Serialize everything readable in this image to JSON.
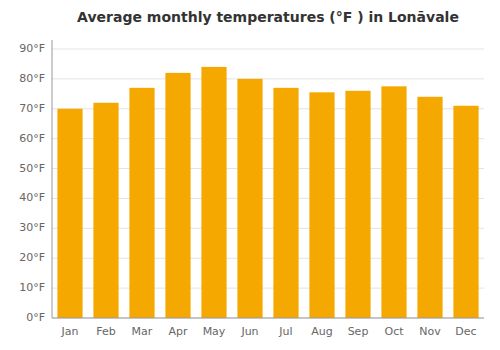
{
  "chart_data": {
    "type": "bar",
    "title": "Average monthly temperatures (°F ) in Lonāvale",
    "categories": [
      "Jan",
      "Feb",
      "Mar",
      "Apr",
      "May",
      "Jun",
      "Jul",
      "Aug",
      "Sep",
      "Oct",
      "Nov",
      "Dec"
    ],
    "values": [
      70,
      72,
      77,
      82,
      84,
      80,
      77,
      75.5,
      76,
      77.5,
      74,
      71
    ],
    "color": "#F5A800",
    "ylim": [
      0,
      93
    ],
    "yticks": [
      {
        "value": 0,
        "label": "0°F"
      },
      {
        "value": 10,
        "label": "10°F"
      },
      {
        "value": 20,
        "label": "20°F"
      },
      {
        "value": 30,
        "label": "30°F"
      },
      {
        "value": 40,
        "label": "40°F"
      },
      {
        "value": 50,
        "label": "50°F"
      },
      {
        "value": 60,
        "label": "60°F"
      },
      {
        "value": 70,
        "label": "70°F"
      },
      {
        "value": 80,
        "label": "80°F"
      },
      {
        "value": 90,
        "label": "90°F"
      }
    ],
    "grid": true
  }
}
